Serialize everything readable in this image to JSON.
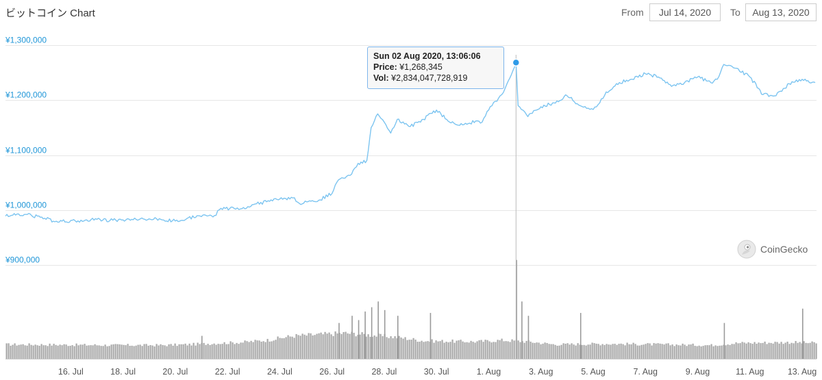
{
  "title": "ビットコイン Chart",
  "range": {
    "from_label": "From",
    "from_value": "Jul 14, 2020",
    "to_label": "To",
    "to_value": "Aug 13, 2020"
  },
  "tooltip": {
    "date": "Sun 02 Aug 2020, 13:06:06",
    "price_label": "Price:",
    "price_value": "¥1,268,345",
    "vol_label": "Vol:",
    "vol_value": "¥2,834,047,728,919"
  },
  "credits": "CoinGecko",
  "colors": {
    "price_line": "#7cc4f0",
    "volume_bars": "#9a9a9a",
    "axis_labels": "#1f96d8",
    "marker": "#2f9be8"
  },
  "chart_data": {
    "type": "line",
    "title": "ビットコイン Chart",
    "x_range": [
      "2020-07-14",
      "2020-08-13"
    ],
    "y_ticks": [
      "¥900,000",
      "¥1,000,000",
      "¥1,100,000",
      "¥1,200,000",
      "¥1,300,000"
    ],
    "y_tick_values": [
      900000,
      1000000,
      1100000,
      1200000,
      1300000
    ],
    "ylim": [
      900000,
      1300000
    ],
    "x_ticks": [
      "16. Jul",
      "18. Jul",
      "20. Jul",
      "22. Jul",
      "24. Jul",
      "26. Jul",
      "28. Jul",
      "30. Jul",
      "1. Aug",
      "3. Aug",
      "5. Aug",
      "7. Aug",
      "9. Aug",
      "11. Aug",
      "13. Aug"
    ],
    "x_tick_dates": [
      "2020-07-16",
      "2020-07-18",
      "2020-07-20",
      "2020-07-22",
      "2020-07-24",
      "2020-07-26",
      "2020-07-28",
      "2020-07-30",
      "2020-08-01",
      "2020-08-03",
      "2020-08-05",
      "2020-08-07",
      "2020-08-09",
      "2020-08-11",
      "2020-08-13"
    ],
    "grid": true,
    "series": [
      {
        "values_unit": "JPY",
        "points": [
          [
            "2020-07-14",
            989000
          ],
          [
            "2020-07-14T12:00",
            993000
          ],
          [
            "2020-07-15",
            990000
          ],
          [
            "2020-07-15T12:00",
            985000
          ],
          [
            "2020-07-16",
            978000
          ],
          [
            "2020-07-16T12:00",
            981000
          ],
          [
            "2020-07-17",
            980000
          ],
          [
            "2020-07-17T12:00",
            983000
          ],
          [
            "2020-07-18",
            981000
          ],
          [
            "2020-07-18T12:00",
            982000
          ],
          [
            "2020-07-19",
            983000
          ],
          [
            "2020-07-19T12:00",
            984000
          ],
          [
            "2020-07-20",
            982000
          ],
          [
            "2020-07-20T12:00",
            980000
          ],
          [
            "2020-07-21",
            986000
          ],
          [
            "2020-07-21T12:00",
            988000
          ],
          [
            "2020-07-22",
            990000
          ],
          [
            "2020-07-22T06:00",
            1003000
          ],
          [
            "2020-07-22T18:00",
            1003000
          ],
          [
            "2020-07-23",
            1002000
          ],
          [
            "2020-07-23T12:00",
            1010000
          ],
          [
            "2020-07-24",
            1015000
          ],
          [
            "2020-07-24T12:00",
            1020000
          ],
          [
            "2020-07-25",
            1022000
          ],
          [
            "2020-07-25T06:00",
            1012000
          ],
          [
            "2020-07-25T18:00",
            1017000
          ],
          [
            "2020-07-26",
            1018000
          ],
          [
            "2020-07-26T12:00",
            1030000
          ],
          [
            "2020-07-26T18:00",
            1055000
          ],
          [
            "2020-07-27",
            1058000
          ],
          [
            "2020-07-27T06:00",
            1065000
          ],
          [
            "2020-07-27T12:00",
            1085000
          ],
          [
            "2020-07-27T20:00",
            1090000
          ],
          [
            "2020-07-28",
            1150000
          ],
          [
            "2020-07-28T06:00",
            1175000
          ],
          [
            "2020-07-28T12:00",
            1160000
          ],
          [
            "2020-07-28T18:00",
            1140000
          ],
          [
            "2020-07-29",
            1165000
          ],
          [
            "2020-07-29T12:00",
            1152000
          ],
          [
            "2020-07-30",
            1165000
          ],
          [
            "2020-07-30T12:00",
            1182000
          ],
          [
            "2020-07-31",
            1160000
          ],
          [
            "2020-07-31T12:00",
            1155000
          ],
          [
            "2020-08-01",
            1162000
          ],
          [
            "2020-08-01T06:00",
            1160000
          ],
          [
            "2020-08-01T12:00",
            1182000
          ],
          [
            "2020-08-01T18:00",
            1198000
          ],
          [
            "2020-08-02",
            1210000
          ],
          [
            "2020-08-02T06:00",
            1235000
          ],
          [
            "2020-08-02T13:06",
            1268345
          ],
          [
            "2020-08-02T14:00",
            1230000
          ],
          [
            "2020-08-02T15:00",
            1190000
          ],
          [
            "2020-08-02T18:00",
            1183000
          ],
          [
            "2020-08-03",
            1170000
          ],
          [
            "2020-08-03T12:00",
            1188000
          ],
          [
            "2020-08-04",
            1195000
          ],
          [
            "2020-08-04T12:00",
            1208000
          ],
          [
            "2020-08-05",
            1190000
          ],
          [
            "2020-08-05T06:00",
            1185000
          ],
          [
            "2020-08-05T12:00",
            1183000
          ],
          [
            "2020-08-05T18:00",
            1195000
          ],
          [
            "2020-08-06",
            1215000
          ],
          [
            "2020-08-06T12:00",
            1232000
          ],
          [
            "2020-08-07",
            1238000
          ],
          [
            "2020-08-07T12:00",
            1248000
          ],
          [
            "2020-08-08",
            1242000
          ],
          [
            "2020-08-08T12:00",
            1225000
          ],
          [
            "2020-08-09",
            1232000
          ],
          [
            "2020-08-09T12:00",
            1242000
          ],
          [
            "2020-08-10",
            1232000
          ],
          [
            "2020-08-10T06:00",
            1238000
          ],
          [
            "2020-08-10T12:00",
            1265000
          ],
          [
            "2020-08-10T18:00",
            1263000
          ],
          [
            "2020-08-11",
            1258000
          ],
          [
            "2020-08-11T12:00",
            1242000
          ],
          [
            "2020-08-12",
            1210000
          ],
          [
            "2020-08-12T12:00",
            1208000
          ],
          [
            "2020-08-13",
            1230000
          ],
          [
            "2020-08-13T12:00",
            1238000
          ],
          [
            "2020-08-14",
            1232000
          ]
        ]
      }
    ],
    "volume": {
      "points": [
        [
          "2020-07-14",
          1.0
        ],
        [
          "2020-07-16",
          0.98
        ],
        [
          "2020-07-18",
          0.95
        ],
        [
          "2020-07-20",
          0.95
        ],
        [
          "2020-07-21",
          1.0
        ],
        [
          "2020-07-22",
          1.08
        ],
        [
          "2020-07-23",
          1.15
        ],
        [
          "2020-07-24",
          1.3
        ],
        [
          "2020-07-25",
          1.6
        ],
        [
          "2020-07-26",
          1.7
        ],
        [
          "2020-07-27",
          1.8
        ],
        [
          "2020-07-28",
          1.65
        ],
        [
          "2020-07-29",
          1.5
        ],
        [
          "2020-07-30",
          1.25
        ],
        [
          "2020-08-01",
          1.2
        ],
        [
          "2020-08-02",
          1.3
        ],
        [
          "2020-08-03",
          1.2
        ],
        [
          "2020-08-04",
          1.0
        ],
        [
          "2020-08-06",
          1.05
        ],
        [
          "2020-08-08",
          1.0
        ],
        [
          "2020-08-10",
          0.95
        ],
        [
          "2020-08-11",
          1.1
        ],
        [
          "2020-08-13",
          1.15
        ],
        [
          "2020-08-14",
          1.1
        ]
      ],
      "spikes": [
        [
          "2020-07-21T12:00",
          1.6
        ],
        [
          "2020-07-26T18:00",
          2.5
        ],
        [
          "2020-07-27T06:00",
          3.0
        ],
        [
          "2020-07-27T12:00",
          2.7
        ],
        [
          "2020-07-27T18:00",
          3.3
        ],
        [
          "2020-07-28",
          3.6
        ],
        [
          "2020-07-28T06:00",
          4.0
        ],
        [
          "2020-07-28T12:00",
          3.4
        ],
        [
          "2020-07-29",
          3.0
        ],
        [
          "2020-07-30T06:00",
          3.2
        ],
        [
          "2020-08-02T13:06",
          6.9
        ],
        [
          "2020-08-02T18:00",
          4.0
        ],
        [
          "2020-08-03",
          3.0
        ],
        [
          "2020-08-05",
          3.2
        ],
        [
          "2020-08-10T12:00",
          2.5
        ],
        [
          "2020-08-13T12:00",
          3.5
        ]
      ]
    }
  }
}
